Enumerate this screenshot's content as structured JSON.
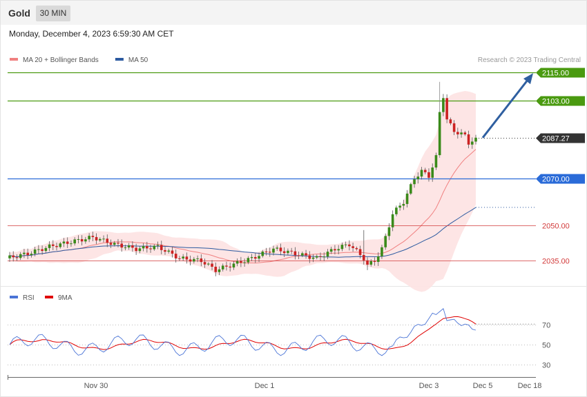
{
  "header": {
    "title": "Gold",
    "timeframe": "30 MIN"
  },
  "datetime": "Monday, December 4, 2023 6:59:30 AM CET",
  "legend": {
    "items": [
      {
        "name": "MA 20 + Bollinger Bands",
        "color": "#f08080"
      },
      {
        "name": "MA 50",
        "color": "#2c5aa0"
      }
    ],
    "credit": "Research © 2023 Trading Central"
  },
  "rsi_legend": {
    "items": [
      {
        "name": "RSI",
        "color": "#4a74d6"
      },
      {
        "name": "9MA",
        "color": "#e00000"
      }
    ]
  },
  "colors": {
    "up": "#3a8a1a",
    "down": "#cc2222",
    "resistance": "#4a9a10",
    "pivot": "#2a6bd8",
    "support": "#d23a3a",
    "last": "#333333",
    "arrow": "#2f5fa0"
  },
  "chart_data": [
    {
      "type": "candlestick",
      "title": "Gold",
      "timeframe": "30 MIN",
      "x_labels": [
        "Nov 30",
        "Dec 1",
        "Dec 3",
        "Dec 5",
        "Dec 18"
      ],
      "ylim": [
        2025,
        2125
      ],
      "levels": [
        {
          "label": "2115.00",
          "value": 2115.0,
          "kind": "resistance"
        },
        {
          "label": "2103.00",
          "value": 2103.0,
          "kind": "resistance"
        },
        {
          "label": "2087.27",
          "value": 2087.27,
          "kind": "last"
        },
        {
          "label": "2070.00",
          "value": 2070.0,
          "kind": "pivot"
        },
        {
          "label": "2050.00",
          "value": 2050.0,
          "kind": "support"
        },
        {
          "label": "2035.00",
          "value": 2035.0,
          "kind": "support"
        }
      ],
      "series": [
        {
          "name": "MA 20 + Bollinger Bands"
        },
        {
          "name": "MA 50"
        }
      ],
      "last_price": 2087.27,
      "projection_target": 2115.0
    },
    {
      "type": "line",
      "title": "",
      "series": [
        {
          "name": "RSI"
        },
        {
          "name": "9MA"
        }
      ],
      "y_ticks": [
        70,
        50,
        30
      ],
      "ylim": [
        15,
        90
      ]
    }
  ]
}
